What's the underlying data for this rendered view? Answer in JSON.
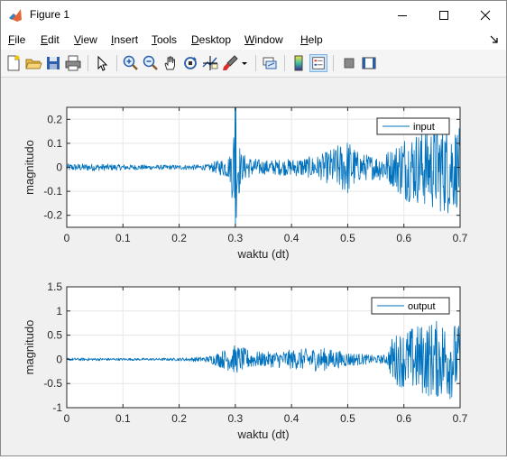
{
  "window": {
    "title": "Figure 1",
    "icon": "matlab-icon"
  },
  "menu": [
    {
      "label": "File",
      "u": "F",
      "rest": "ile"
    },
    {
      "label": "Edit",
      "u": "E",
      "rest": "dit"
    },
    {
      "label": "View",
      "u": "V",
      "rest": "iew"
    },
    {
      "label": "Insert",
      "u": "I",
      "rest": "nsert"
    },
    {
      "label": "Tools",
      "u": "T",
      "rest": "ools"
    },
    {
      "label": "Desktop",
      "u": "D",
      "rest": "esktop"
    },
    {
      "label": "Window",
      "u": "W",
      "rest": "indow"
    },
    {
      "label": "Help",
      "u": "H",
      "rest": "elp"
    }
  ],
  "toolbar": {
    "icons": [
      "new-figure-icon",
      "open-file-icon",
      "save-icon",
      "print-icon",
      "select-arrow-icon",
      "zoom-in-icon",
      "zoom-out-icon",
      "pan-hand-icon",
      "rotate-3d-icon",
      "data-cursor-icon",
      "brush-icon",
      "brush-dropdown-icon",
      "link-plot-icon",
      "insert-colorbar-icon",
      "insert-legend-icon",
      "hide-plot-tools-icon",
      "show-plot-tools-icon"
    ]
  },
  "colors": {
    "line": "#0072bd",
    "grid": "#e6e6e6",
    "axes_bg": "#ffffff",
    "figure_bg": "#f0f0f0"
  },
  "chart_data": [
    {
      "type": "line",
      "xlabel": "waktu (dt)",
      "ylabel": "magnitudo",
      "xlim": [
        0,
        0.7
      ],
      "ylim": [
        -0.25,
        0.25
      ],
      "xticks": [
        0,
        0.1,
        0.2,
        0.3,
        0.4,
        0.5,
        0.6,
        0.7
      ],
      "yticks": [
        -0.2,
        -0.1,
        0,
        0.1,
        0.2
      ],
      "ytick_labels": [
        "-0.2",
        "-0.1",
        "0",
        "0.1",
        "0.2"
      ],
      "grid": true,
      "legend_position": "top-right",
      "series": [
        {
          "name": "input",
          "envelope": {
            "t": [
              0,
              0.05,
              0.1,
              0.15,
              0.2,
              0.25,
              0.27,
              0.29,
              0.3,
              0.31,
              0.33,
              0.35,
              0.4,
              0.45,
              0.48,
              0.5,
              0.52,
              0.55,
              0.58,
              0.6,
              0.62,
              0.65,
              0.68,
              0.7
            ],
            "amp": [
              0.015,
              0.015,
              0.012,
              0.01,
              0.01,
              0.012,
              0.03,
              0.05,
              0.25,
              0.06,
              0.04,
              0.03,
              0.035,
              0.05,
              0.09,
              0.12,
              0.06,
              0.05,
              0.08,
              0.14,
              0.15,
              0.18,
              0.2,
              0.16
            ]
          }
        }
      ]
    },
    {
      "type": "line",
      "xlabel": "waktu (dt)",
      "ylabel": "magnitudo",
      "xlim": [
        0,
        0.7
      ],
      "ylim": [
        -1,
        1.5
      ],
      "xticks": [
        0,
        0.1,
        0.2,
        0.3,
        0.4,
        0.5,
        0.6,
        0.7
      ],
      "yticks": [
        -1,
        -0.5,
        0,
        0.5,
        1,
        1.5
      ],
      "ytick_labels": [
        "-1",
        "-0.5",
        "0",
        "0.5",
        "1",
        "1.5"
      ],
      "grid": true,
      "legend_position": "top-right",
      "series": [
        {
          "name": "output",
          "envelope": {
            "t": [
              0,
              0.05,
              0.1,
              0.15,
              0.2,
              0.25,
              0.28,
              0.3,
              0.33,
              0.35,
              0.4,
              0.45,
              0.5,
              0.55,
              0.57,
              0.58,
              0.6,
              0.62,
              0.65,
              0.68,
              0.7
            ],
            "amp": [
              0.03,
              0.03,
              0.025,
              0.025,
              0.03,
              0.06,
              0.2,
              0.3,
              0.18,
              0.15,
              0.2,
              0.25,
              0.15,
              0.08,
              0.1,
              0.5,
              0.6,
              0.7,
              0.8,
              0.85,
              0.7
            ]
          }
        }
      ]
    }
  ]
}
